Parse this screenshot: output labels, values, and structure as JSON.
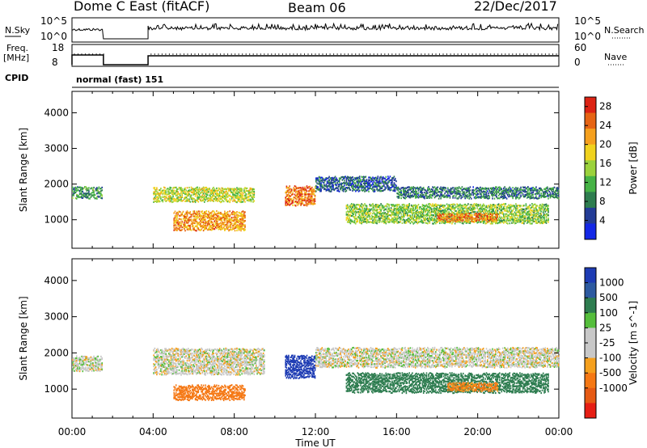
{
  "header": {
    "title": "Dome C East (fitACF)",
    "beam": "Beam 06",
    "date": "22/Dec/2017"
  },
  "strip_labels": {
    "nsky": "N.Sky",
    "nsearch": "N.Search",
    "freq": "Freq.",
    "freq_unit": "[MHz]",
    "nave": "Nave",
    "cpid": "CPID",
    "cpid_value": "normal (fast) 151"
  },
  "strip_ticks": {
    "nsky_left": [
      "10^5",
      "10^0"
    ],
    "nsky_right": [
      "10^5",
      "10^0"
    ],
    "freq_left": [
      "18",
      "8"
    ],
    "nave_right": [
      "60",
      "0"
    ]
  },
  "colors": {
    "power": [
      "#1428e6",
      "#233c96",
      "#2e7d4f",
      "#46b346",
      "#9bd23c",
      "#f0d21e",
      "#f5a01e",
      "#e66414",
      "#dc2314"
    ],
    "velocity": [
      "#1e3cb4",
      "#2d5aa0",
      "#2e7d50",
      "#55be3c",
      "#c8c8c8",
      "#c8c8c8",
      "#f5a01e",
      "#f57814",
      "#e65a14",
      "#e61e14"
    ]
  },
  "chart_data": [
    {
      "type": "heatmap",
      "title": "",
      "ylabel": "Slant Range [km]",
      "xlabel": "",
      "xlim": [
        "00:00",
        "24:00"
      ],
      "ylim": [
        200,
        4600
      ],
      "yticks": [
        "1000",
        "2000",
        "3000",
        "4000"
      ],
      "colorbar": {
        "label": "Power [dB]",
        "ticks": [
          "4",
          "8",
          "12",
          "16",
          "20",
          "24",
          "28"
        ],
        "range": [
          0,
          30
        ]
      },
      "bands": [
        {
          "t_start": "00:00",
          "t_end": "01:30",
          "range_km": [
            1600,
            1900
          ],
          "value": 10
        },
        {
          "t_start": "04:00",
          "t_end": "09:00",
          "range_km": [
            1500,
            1900
          ],
          "value": 16
        },
        {
          "t_start": "05:00",
          "t_end": "08:30",
          "range_km": [
            700,
            1200
          ],
          "value": 22
        },
        {
          "t_start": "10:30",
          "t_end": "12:00",
          "range_km": [
            1400,
            1900
          ],
          "value": 24
        },
        {
          "t_start": "12:00",
          "t_end": "16:00",
          "range_km": [
            1800,
            2200
          ],
          "value": 6
        },
        {
          "t_start": "13:30",
          "t_end": "23:30",
          "range_km": [
            900,
            1400
          ],
          "value": 14
        },
        {
          "t_start": "18:00",
          "t_end": "21:00",
          "range_km": [
            950,
            1150
          ],
          "value": 24
        },
        {
          "t_start": "16:00",
          "t_end": "24:00",
          "range_km": [
            1600,
            1900
          ],
          "value": 8
        }
      ]
    },
    {
      "type": "heatmap",
      "title": "",
      "ylabel": "Slant Range [km]",
      "xlabel": "Time UT",
      "xlim": [
        "00:00",
        "24:00"
      ],
      "ylim": [
        200,
        4600
      ],
      "yticks": [
        "1000",
        "2000",
        "3000",
        "4000"
      ],
      "xticks": [
        "00:00",
        "04:00",
        "08:00",
        "12:00",
        "16:00",
        "20:00",
        "00:00"
      ],
      "colorbar": {
        "label": "Velocity [m s^-1]",
        "ticks": [
          "1000",
          "500",
          "100",
          "25",
          "-25",
          "-100",
          "-500",
          "-1000"
        ],
        "range": [
          -1000,
          1000
        ]
      },
      "bands": [
        {
          "t_start": "00:00",
          "t_end": "01:30",
          "range_km": [
            1500,
            1900
          ],
          "value": 0
        },
        {
          "t_start": "04:00",
          "t_end": "09:30",
          "range_km": [
            1400,
            2100
          ],
          "value": 0
        },
        {
          "t_start": "05:00",
          "t_end": "08:30",
          "range_km": [
            700,
            1100
          ],
          "value": -300
        },
        {
          "t_start": "10:30",
          "t_end": "12:00",
          "range_km": [
            1300,
            1900
          ],
          "value": 600
        },
        {
          "t_start": "12:00",
          "t_end": "24:00",
          "range_km": [
            1600,
            2100
          ],
          "value": 0
        },
        {
          "t_start": "13:30",
          "t_end": "23:30",
          "range_km": [
            900,
            1400
          ],
          "value": 150
        },
        {
          "t_start": "18:30",
          "t_end": "21:00",
          "range_km": [
            950,
            1150
          ],
          "value": -120
        }
      ]
    }
  ]
}
